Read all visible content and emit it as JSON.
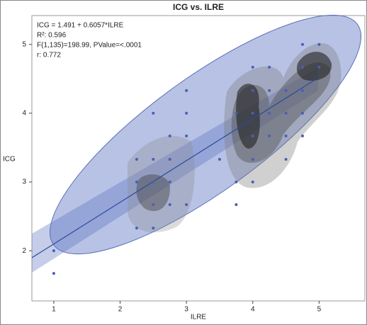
{
  "chart_data": {
    "type": "scatter",
    "title": "ICG vs. ILRE",
    "x_label": "ILRE",
    "y_label": "ICG",
    "annotations": [
      "ICG = 1.491 + 0.6057*ILRE",
      "R²: 0.596",
      "F(1,135)=198.99, PValue=<.0001",
      "r: 0.772"
    ],
    "color": "#4a5fb5",
    "x": [
      1,
      1,
      2.5,
      3,
      3,
      2.75,
      3,
      2.25,
      2.5,
      2.75,
      2.25,
      2.5,
      2.75,
      2.5,
      2.75,
      3,
      2.25,
      2.5,
      3.75,
      3.75,
      4,
      3.5,
      4,
      4,
      4.25,
      4.5,
      4.75,
      4.5,
      3.75,
      4,
      4.25,
      4.5,
      4.75,
      4,
      4.25,
      4.5,
      4.75,
      4,
      4.25,
      4.75,
      5,
      4.75,
      5
    ],
    "values": [
      2,
      1.67,
      4,
      4.33,
      4,
      3.67,
      3.67,
      3.33,
      3.33,
      3.33,
      3,
      3,
      3,
      2.67,
      2.67,
      2.67,
      2.33,
      2.33,
      2.67,
      3,
      3,
      3.33,
      3.33,
      3.67,
      3.67,
      3.67,
      3.67,
      3.33,
      4,
      4,
      4,
      4,
      4,
      4.33,
      4.33,
      4.33,
      4.33,
      4.67,
      4.67,
      4.67,
      4.67,
      5,
      5
    ],
    "xlim": [
      0.67,
      5.69
    ],
    "ylim": [
      1.27,
      5.42
    ],
    "xticks": [
      1,
      2,
      3,
      4,
      5
    ],
    "yticks": [
      2,
      3,
      4,
      5
    ]
  }
}
